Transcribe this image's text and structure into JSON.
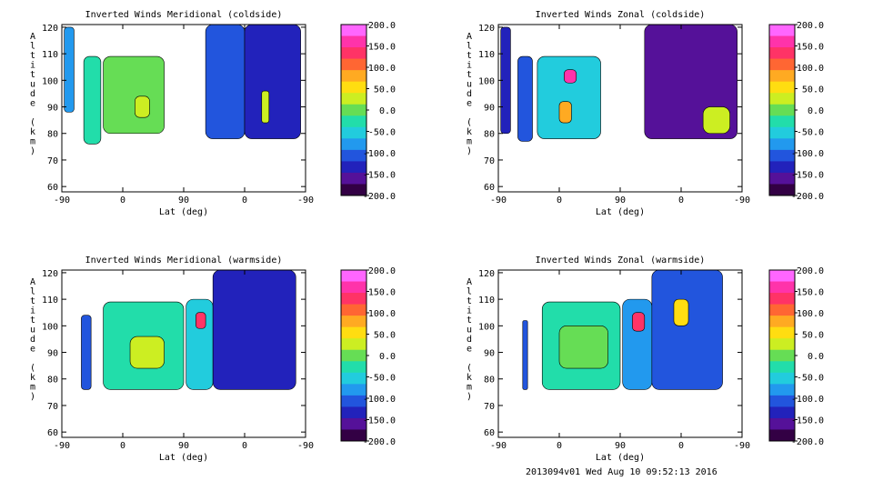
{
  "colors": {
    "background": "#ffffff",
    "colorbar_top_to_bottom": [
      "#ff66ff",
      "#ff33aa",
      "#ff3366",
      "#ff6633",
      "#ffaa22",
      "#ffdd11",
      "#ccee22",
      "#66dd55",
      "#22ddaa",
      "#22ccdd",
      "#2299ee",
      "#2255dd",
      "#2222bb",
      "#551199",
      "#330044"
    ]
  },
  "footer": {
    "text": "2013094v01 Wed Aug 10 09:52:13 2016"
  },
  "chart_data": [
    {
      "type": "heatmap",
      "title": "Inverted Winds Meridional (coldside)",
      "xlabel": "Lat (deg)",
      "ylabel": "Altitude (km)",
      "xticks": [
        "-90",
        "0",
        "90",
        "0",
        "-90"
      ],
      "yticks": [
        "60",
        "70",
        "80",
        "90",
        "100",
        "110",
        "120"
      ],
      "ylim": [
        58,
        121
      ],
      "colorbar": {
        "ticks": [
          "200.0",
          "150.0",
          "100.0",
          "50.0",
          "0.0",
          "-50.0",
          "-100.0",
          "-150.0",
          "-200.0"
        ],
        "range": [
          -200,
          200
        ]
      },
      "blobs": [
        {
          "x": [
            0.01,
            0.05
          ],
          "y": [
            88,
            120
          ],
          "value": -90
        },
        {
          "x": [
            0.09,
            0.16
          ],
          "y": [
            76,
            109
          ],
          "value": -20
        },
        {
          "x": [
            0.17,
            0.42
          ],
          "y": [
            80,
            109
          ],
          "value": 10
        },
        {
          "x": [
            0.3,
            0.36
          ],
          "y": [
            86,
            94
          ],
          "value": 30
        },
        {
          "x": [
            0.59,
            0.75
          ],
          "y": [
            78,
            121
          ],
          "value": -110
        },
        {
          "x": [
            0.75,
            0.98
          ],
          "y": [
            78,
            121
          ],
          "value": -140
        },
        {
          "x": [
            0.82,
            0.85
          ],
          "y": [
            84,
            96
          ],
          "value": 40
        }
      ]
    },
    {
      "type": "heatmap",
      "title": "Inverted Winds Zonal (coldside)",
      "xlabel": "Lat (deg)",
      "ylabel": "Altitude (km)",
      "xticks": [
        "-90",
        "0",
        "90",
        "0",
        "-90"
      ],
      "yticks": [
        "60",
        "70",
        "80",
        "90",
        "100",
        "110",
        "120"
      ],
      "ylim": [
        58,
        121
      ],
      "colorbar": {
        "ticks": [
          "200.0",
          "150.0",
          "100.0",
          "50.0",
          "0.0",
          "-50.0",
          "-100.0",
          "-150.0",
          "-200.0"
        ],
        "range": [
          -200,
          200
        ]
      },
      "blobs": [
        {
          "x": [
            0.01,
            0.05
          ],
          "y": [
            80,
            120
          ],
          "value": -120
        },
        {
          "x": [
            0.08,
            0.14
          ],
          "y": [
            77,
            109
          ],
          "value": -110
        },
        {
          "x": [
            0.16,
            0.42
          ],
          "y": [
            78,
            109
          ],
          "value": -40
        },
        {
          "x": [
            0.25,
            0.3
          ],
          "y": [
            84,
            92
          ],
          "value": 90
        },
        {
          "x": [
            0.27,
            0.32
          ],
          "y": [
            99,
            104
          ],
          "value": 150
        },
        {
          "x": [
            0.6,
            0.98
          ],
          "y": [
            78,
            121
          ],
          "value": -150
        },
        {
          "x": [
            0.84,
            0.95
          ],
          "y": [
            80,
            90
          ],
          "value": 30
        }
      ]
    },
    {
      "type": "heatmap",
      "title": "Inverted Winds Meridional (warmside)",
      "xlabel": "Lat (deg)",
      "ylabel": "Altitude (km)",
      "xticks": [
        "-90",
        "0",
        "90",
        "0",
        "-90"
      ],
      "yticks": [
        "60",
        "70",
        "80",
        "90",
        "100",
        "110",
        "120"
      ],
      "ylim": [
        58,
        121
      ],
      "colorbar": {
        "ticks": [
          "200.0",
          "150.0",
          "100.0",
          "50.0",
          "0.0",
          "-50.0",
          "-100.0",
          "-150.0",
          "-200.0"
        ],
        "range": [
          -200,
          200
        ]
      },
      "blobs": [
        {
          "x": [
            0.08,
            0.12
          ],
          "y": [
            76,
            104
          ],
          "value": -110
        },
        {
          "x": [
            0.17,
            0.5
          ],
          "y": [
            76,
            109
          ],
          "value": -20
        },
        {
          "x": [
            0.28,
            0.42
          ],
          "y": [
            84,
            96
          ],
          "value": 20
        },
        {
          "x": [
            0.51,
            0.62
          ],
          "y": [
            76,
            110
          ],
          "value": -60
        },
        {
          "x": [
            0.55,
            0.59
          ],
          "y": [
            99,
            105
          ],
          "value": 140
        },
        {
          "x": [
            0.62,
            0.96
          ],
          "y": [
            76,
            121
          ],
          "value": -120
        }
      ]
    },
    {
      "type": "heatmap",
      "title": "Inverted Winds Zonal (warmside)",
      "xlabel": "Lat (deg)",
      "ylabel": "Altitude (km)",
      "xticks": [
        "-90",
        "0",
        "90",
        "0",
        "-90"
      ],
      "yticks": [
        "60",
        "70",
        "80",
        "90",
        "100",
        "110",
        "120"
      ],
      "ylim": [
        58,
        121
      ],
      "colorbar": {
        "ticks": [
          "200.0",
          "150.0",
          "100.0",
          "50.0",
          "0.0",
          "-50.0",
          "-100.0",
          "-150.0",
          "-200.0"
        ],
        "range": [
          -200,
          200
        ]
      },
      "blobs": [
        {
          "x": [
            0.1,
            0.12
          ],
          "y": [
            76,
            102
          ],
          "value": -110
        },
        {
          "x": [
            0.18,
            0.5
          ],
          "y": [
            76,
            109
          ],
          "value": -30
        },
        {
          "x": [
            0.25,
            0.45
          ],
          "y": [
            84,
            100
          ],
          "value": 0
        },
        {
          "x": [
            0.51,
            0.63
          ],
          "y": [
            76,
            110
          ],
          "value": -70
        },
        {
          "x": [
            0.55,
            0.6
          ],
          "y": [
            98,
            105
          ],
          "value": 130
        },
        {
          "x": [
            0.63,
            0.92
          ],
          "y": [
            76,
            121
          ],
          "value": -110
        },
        {
          "x": [
            0.72,
            0.78
          ],
          "y": [
            100,
            110
          ],
          "value": 60
        }
      ]
    }
  ]
}
